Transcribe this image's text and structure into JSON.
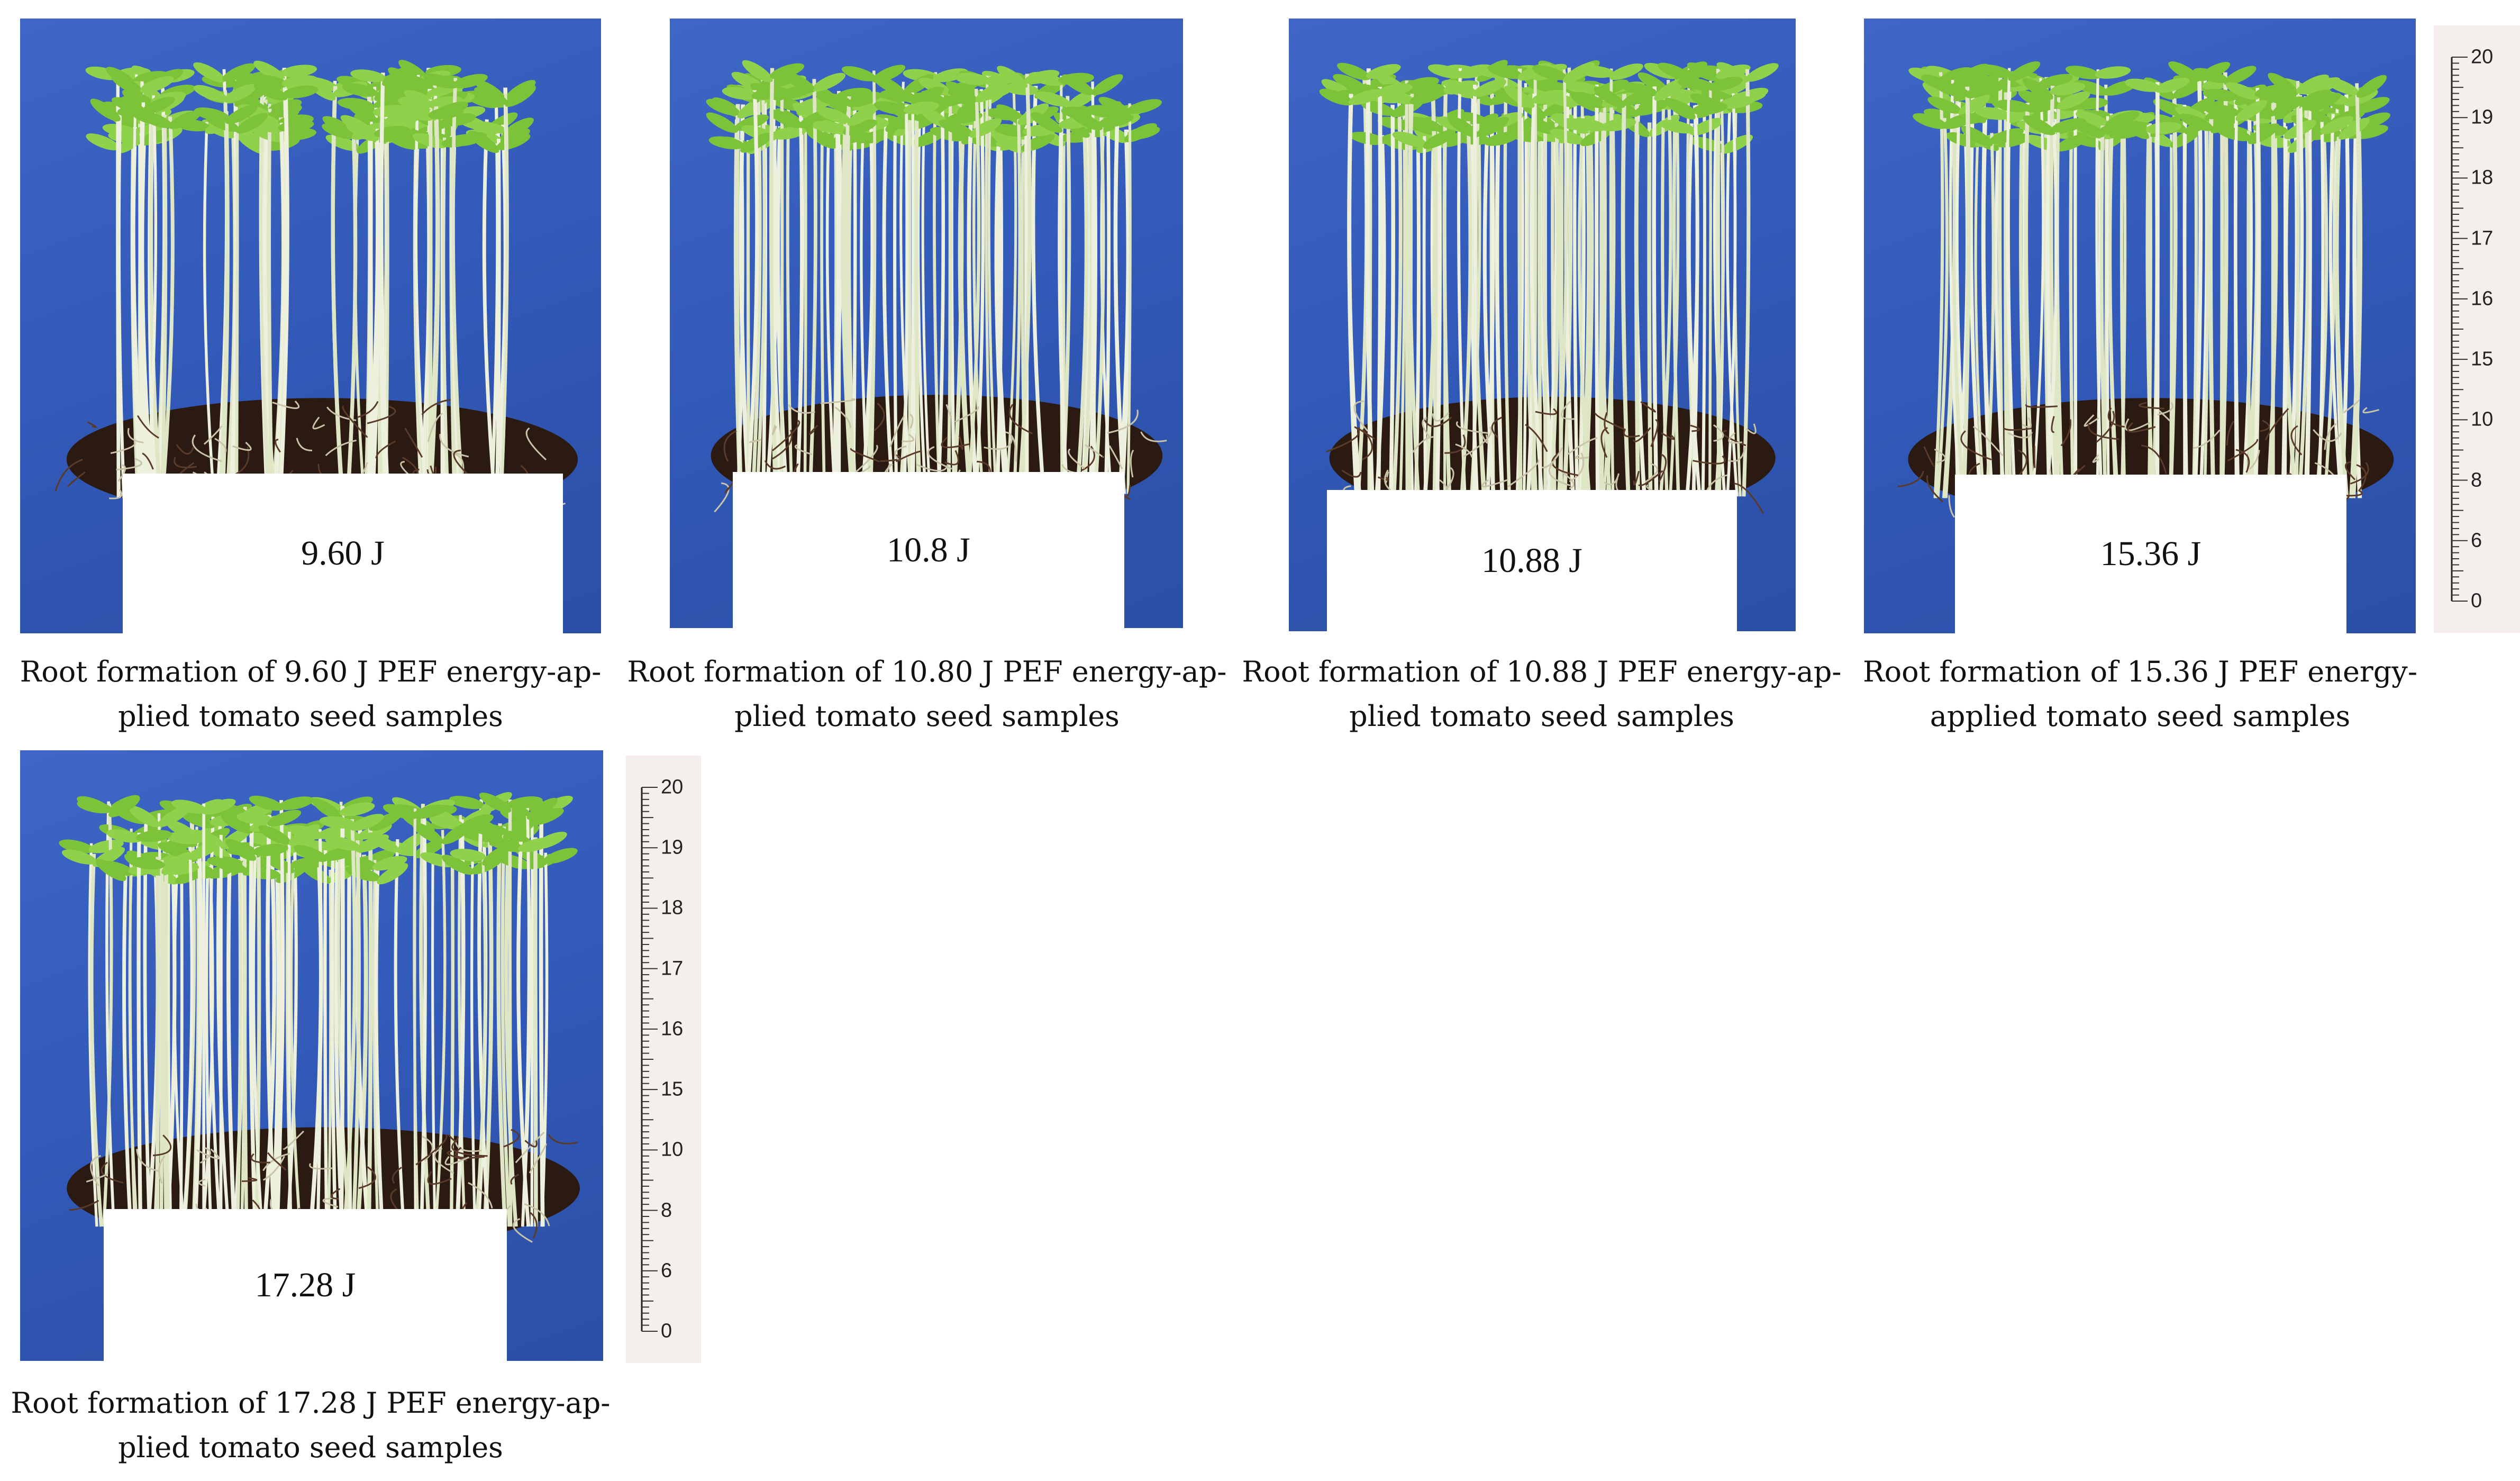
{
  "panels": [
    {
      "energy_label": "9.60 J",
      "caption_line1": "Root formation of 9.60 J PEF energy-ap-",
      "caption_line2": "plied tomato seed samples"
    },
    {
      "energy_label": "10.8 J",
      "caption_line1": "Root formation of 10.80 J PEF energy-ap-",
      "caption_line2": "plied tomato seed samples"
    },
    {
      "energy_label": "10.88 J",
      "caption_line1": "Root formation of 10.88 J PEF energy-ap-",
      "caption_line2": "plied tomato seed samples"
    },
    {
      "energy_label": "15.36 J",
      "caption_line1": "Root formation of 15.36 J PEF energy-",
      "caption_line2": "applied tomato seed samples"
    },
    {
      "energy_label": "17.28 J",
      "caption_line1": "Root formation of 17.28 J PEF energy-ap-",
      "caption_line2": "plied tomato seed samples"
    }
  ],
  "ruler_labels": [
    "20",
    "19",
    "18",
    "17",
    "16",
    "15",
    "10",
    "8",
    "6",
    "0"
  ],
  "colors": {
    "background": "#3158b6",
    "leaf": "#7cc33a",
    "stem": "#e8ecd8",
    "soil": "#2a1a12",
    "ruler": "#f4efec"
  }
}
